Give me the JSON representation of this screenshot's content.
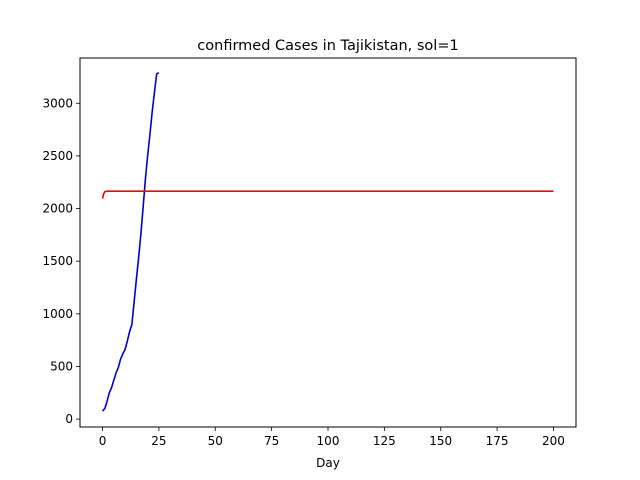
{
  "chart_data": {
    "type": "line",
    "title": "confirmed Cases in Tajikistan, sol=1",
    "xlabel": "Day",
    "ylabel": "",
    "xlim": [
      -10,
      210
    ],
    "ylim": [
      -75,
      3430
    ],
    "xticks": [
      0,
      25,
      50,
      75,
      100,
      125,
      150,
      175,
      200
    ],
    "yticks": [
      0,
      500,
      1000,
      1500,
      2000,
      2500,
      3000
    ],
    "grid": false,
    "series": [
      {
        "color": "#0000cc",
        "x": [
          0,
          1,
          2,
          3,
          4,
          5,
          6,
          7,
          8,
          9,
          10,
          11,
          12,
          13,
          14,
          15,
          16,
          17,
          18,
          19,
          20,
          21,
          22,
          23,
          24,
          25
        ],
        "values": [
          76,
          100,
          170,
          250,
          300,
          370,
          440,
          490,
          570,
          620,
          661,
          740,
          830,
          900,
          1110,
          1330,
          1530,
          1760,
          2010,
          2280,
          2500,
          2700,
          2910,
          3100,
          3280,
          3290
        ]
      },
      {
        "color": "#ff0000",
        "x": [
          0,
          0.5,
          1,
          2,
          3,
          5,
          10,
          50,
          100,
          150,
          200
        ],
        "values": [
          2095,
          2140,
          2160,
          2165,
          2165,
          2165,
          2165,
          2165,
          2165,
          2165,
          2165
        ]
      }
    ]
  }
}
